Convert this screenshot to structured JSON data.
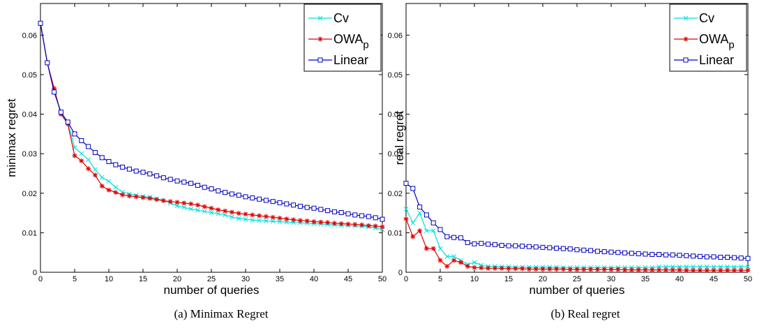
{
  "chart_data": [
    {
      "type": "line",
      "xlabel": "number of queries",
      "ylabel": "minimax regret",
      "xlim": [
        0,
        50
      ],
      "ylim": [
        0,
        0.068
      ],
      "xticks": [
        0,
        5,
        10,
        15,
        20,
        25,
        30,
        35,
        40,
        45,
        50
      ],
      "yticks": [
        0,
        0.01,
        0.02,
        0.03,
        0.04,
        0.05,
        0.06
      ],
      "ytick_labels": [
        "0",
        "0.01",
        "0.02",
        "0.03",
        "0.04",
        "0.05",
        "0.06"
      ],
      "legend_position": "top-right",
      "x": [
        0,
        1,
        2,
        3,
        4,
        5,
        6,
        7,
        8,
        9,
        10,
        11,
        12,
        13,
        14,
        15,
        16,
        17,
        18,
        19,
        20,
        21,
        22,
        23,
        24,
        25,
        26,
        27,
        28,
        29,
        30,
        31,
        32,
        33,
        34,
        35,
        36,
        37,
        38,
        39,
        40,
        41,
        42,
        43,
        44,
        45,
        46,
        47,
        48,
        49,
        50
      ],
      "series": [
        {
          "name": "Cv",
          "legend_label": "Cv",
          "color": "#00e0e0",
          "marker": "x",
          "values": [
            0.063,
            0.053,
            0.046,
            0.04,
            0.038,
            0.0315,
            0.03,
            0.0285,
            0.026,
            0.024,
            0.023,
            0.0215,
            0.0203,
            0.0198,
            0.0195,
            0.0192,
            0.019,
            0.0186,
            0.0182,
            0.0175,
            0.0168,
            0.0164,
            0.016,
            0.0157,
            0.0154,
            0.0151,
            0.0148,
            0.0145,
            0.014,
            0.0136,
            0.0134,
            0.0132,
            0.0131,
            0.013,
            0.0129,
            0.0128,
            0.0127,
            0.0126,
            0.0125,
            0.0124,
            0.0123,
            0.0122,
            0.0121,
            0.012,
            0.0119,
            0.0118,
            0.0117,
            0.0116,
            0.0115,
            0.0112,
            0.0108
          ]
        },
        {
          "name": "OWAp",
          "legend_label": "OWA",
          "legend_sub": "p",
          "color": "#e00000",
          "marker": "*",
          "values": [
            0.063,
            0.053,
            0.0465,
            0.04,
            0.0375,
            0.0295,
            0.0282,
            0.0262,
            0.0246,
            0.0218,
            0.0208,
            0.0202,
            0.0196,
            0.0193,
            0.0191,
            0.0189,
            0.0187,
            0.0184,
            0.0181,
            0.0179,
            0.0177,
            0.0175,
            0.0173,
            0.017,
            0.0166,
            0.0162,
            0.0158,
            0.0155,
            0.0152,
            0.0149,
            0.0147,
            0.0145,
            0.0143,
            0.0141,
            0.0139,
            0.0137,
            0.0135,
            0.0133,
            0.0131,
            0.013,
            0.0128,
            0.0127,
            0.0126,
            0.0124,
            0.0123,
            0.0122,
            0.0121,
            0.012,
            0.0118,
            0.0117,
            0.0115
          ]
        },
        {
          "name": "Linear",
          "legend_label": "Linear",
          "color": "#0000c0",
          "marker": "square",
          "values": [
            0.063,
            0.053,
            0.0456,
            0.0405,
            0.038,
            0.035,
            0.0333,
            0.0318,
            0.0303,
            0.029,
            0.028,
            0.0272,
            0.0266,
            0.0261,
            0.0256,
            0.0253,
            0.0249,
            0.0244,
            0.0239,
            0.0235,
            0.0231,
            0.0228,
            0.0225,
            0.022,
            0.0215,
            0.0211,
            0.0206,
            0.0202,
            0.0198,
            0.0195,
            0.0191,
            0.0188,
            0.0185,
            0.0182,
            0.0179,
            0.0176,
            0.0173,
            0.017,
            0.0167,
            0.0164,
            0.0162,
            0.0159,
            0.0156,
            0.0153,
            0.0151,
            0.0148,
            0.0145,
            0.0143,
            0.0141,
            0.0138,
            0.0134
          ]
        }
      ]
    },
    {
      "type": "line",
      "xlabel": "number of queries",
      "ylabel": "real regret",
      "xlim": [
        0,
        50
      ],
      "ylim": [
        0,
        0.068
      ],
      "xticks": [
        0,
        5,
        10,
        15,
        20,
        25,
        30,
        35,
        40,
        45,
        50
      ],
      "yticks": [
        0,
        0.01,
        0.02,
        0.03,
        0.04,
        0.05,
        0.06
      ],
      "ytick_labels": [
        "0",
        "0.01",
        "0.02",
        "0.03",
        "0.04",
        "0.05",
        "0.06"
      ],
      "legend_position": "top-right",
      "x": [
        0,
        1,
        2,
        3,
        4,
        5,
        6,
        7,
        8,
        9,
        10,
        11,
        12,
        13,
        14,
        15,
        16,
        17,
        18,
        19,
        20,
        21,
        22,
        23,
        24,
        25,
        26,
        27,
        28,
        29,
        30,
        31,
        32,
        33,
        34,
        35,
        36,
        37,
        38,
        39,
        40,
        41,
        42,
        43,
        44,
        45,
        46,
        47,
        48,
        49,
        50
      ],
      "series": [
        {
          "name": "Cv",
          "legend_label": "Cv",
          "color": "#00e0e0",
          "marker": "x",
          "values": [
            0.016,
            0.0125,
            0.015,
            0.0105,
            0.0105,
            0.006,
            0.004,
            0.004,
            0.003,
            0.002,
            0.0025,
            0.0018,
            0.0015,
            0.0015,
            0.0014,
            0.0014,
            0.0013,
            0.0013,
            0.0013,
            0.0013,
            0.0013,
            0.0013,
            0.0013,
            0.0012,
            0.0012,
            0.0012,
            0.0012,
            0.0012,
            0.0012,
            0.0012,
            0.0012,
            0.0012,
            0.0012,
            0.0012,
            0.0012,
            0.0012,
            0.0012,
            0.0014,
            0.0014,
            0.0014,
            0.0014,
            0.0014,
            0.0014,
            0.0014,
            0.0014,
            0.0014,
            0.0014,
            0.0014,
            0.0014,
            0.0014,
            0.0014
          ]
        },
        {
          "name": "OWAp",
          "legend_label": "OWA",
          "legend_sub": "p",
          "color": "#e00000",
          "marker": "*",
          "values": [
            0.0135,
            0.009,
            0.0105,
            0.006,
            0.006,
            0.003,
            0.0015,
            0.003,
            0.0025,
            0.0015,
            0.0012,
            0.0011,
            0.001,
            0.001,
            0.001,
            0.0009,
            0.0009,
            0.0009,
            0.0008,
            0.0008,
            0.0008,
            0.0008,
            0.0008,
            0.0008,
            0.0007,
            0.0007,
            0.0007,
            0.0007,
            0.0007,
            0.0007,
            0.0007,
            0.0007,
            0.0006,
            0.0006,
            0.0006,
            0.0006,
            0.0006,
            0.0006,
            0.0006,
            0.0006,
            0.0006,
            0.0005,
            0.0005,
            0.0005,
            0.0005,
            0.0005,
            0.0005,
            0.0005,
            0.0005,
            0.0005,
            0.0005
          ]
        },
        {
          "name": "Linear",
          "legend_label": "Linear",
          "color": "#0000c0",
          "marker": "square",
          "values": [
            0.0225,
            0.0212,
            0.0165,
            0.0145,
            0.0125,
            0.0108,
            0.009,
            0.0088,
            0.0087,
            0.0075,
            0.0072,
            0.0073,
            0.0071,
            0.007,
            0.0068,
            0.0067,
            0.0067,
            0.0066,
            0.0065,
            0.0064,
            0.0063,
            0.0062,
            0.0061,
            0.006,
            0.0059,
            0.0057,
            0.0056,
            0.0055,
            0.0053,
            0.0052,
            0.0051,
            0.005,
            0.0049,
            0.0048,
            0.0047,
            0.0046,
            0.0045,
            0.0045,
            0.0044,
            0.0044,
            0.0043,
            0.0042,
            0.0041,
            0.004,
            0.0039,
            0.0039,
            0.0038,
            0.0038,
            0.0037,
            0.0036,
            0.0035
          ]
        }
      ]
    }
  ],
  "captions": [
    "(a) Minimax Regret",
    "(b) Real regret"
  ]
}
